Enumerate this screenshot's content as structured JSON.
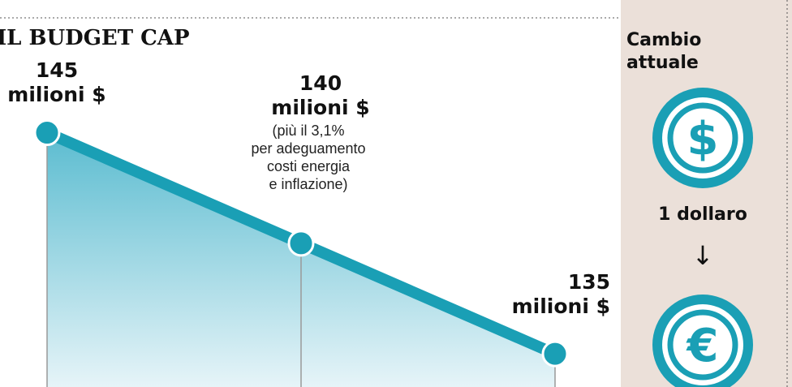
{
  "title": "IL BUDGET CAP",
  "chart_data": {
    "type": "line",
    "categories": [
      null,
      null,
      null
    ],
    "series": [
      {
        "name": null,
        "color": "#1a9fb5",
        "values": [
          145,
          140,
          135
        ],
        "value_labels": [
          "145\nmilioni $",
          "140\nmilioni $",
          "135\nmilioni $"
        ]
      }
    ],
    "ylim": [
      133.5,
      151
    ],
    "annotations": [
      "(più il 3,1%\nper adeguamento\ncosti energia\ne inflazione)"
    ]
  },
  "sidebar": {
    "heading": "Cambio\nattuale",
    "from": "1 dollaro",
    "arrow": "↓",
    "icon_from": "$",
    "icon_to": "€"
  }
}
